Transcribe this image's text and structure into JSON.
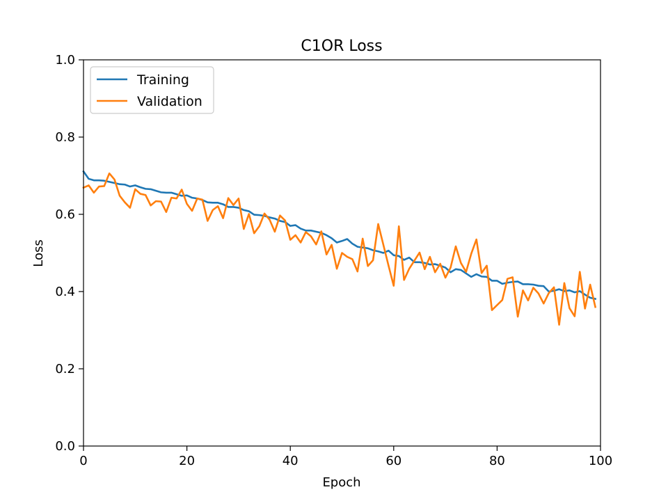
{
  "chart_data": {
    "type": "line",
    "title": "C1OR Loss",
    "xlabel": "Epoch",
    "ylabel": "Loss",
    "xlim": [
      0,
      100
    ],
    "ylim": [
      0.0,
      1.0
    ],
    "xticks": [
      0,
      20,
      40,
      60,
      80,
      100
    ],
    "yticks": [
      0.0,
      0.2,
      0.4,
      0.6,
      0.8,
      1.0
    ],
    "xtick_labels": [
      "0",
      "20",
      "40",
      "60",
      "80",
      "100"
    ],
    "ytick_labels": [
      "0.0",
      "0.2",
      "0.4",
      "0.6",
      "0.8",
      "1.0"
    ],
    "grid": false,
    "legend": "upper-left",
    "x": [
      0,
      1,
      2,
      3,
      4,
      5,
      6,
      7,
      8,
      9,
      10,
      11,
      12,
      13,
      14,
      15,
      16,
      17,
      18,
      19,
      20,
      21,
      22,
      23,
      24,
      25,
      26,
      27,
      28,
      29,
      30,
      31,
      32,
      33,
      34,
      35,
      36,
      37,
      38,
      39,
      40,
      41,
      42,
      43,
      44,
      45,
      46,
      47,
      48,
      49,
      50,
      51,
      52,
      53,
      54,
      55,
      56,
      57,
      58,
      59,
      60,
      61,
      62,
      63,
      64,
      65,
      66,
      67,
      68,
      69,
      70,
      71,
      72,
      73,
      74,
      75,
      76,
      77,
      78,
      79,
      80,
      81,
      82,
      83,
      84,
      85,
      86,
      87,
      88,
      89,
      90,
      91,
      92,
      93,
      94,
      95,
      96,
      97,
      98,
      99
    ],
    "series": [
      {
        "name": "Training",
        "color": "#1f77b4",
        "values": [
          0.711,
          0.692,
          0.688,
          0.688,
          0.687,
          0.684,
          0.681,
          0.678,
          0.677,
          0.672,
          0.675,
          0.67,
          0.666,
          0.665,
          0.661,
          0.657,
          0.656,
          0.656,
          0.652,
          0.648,
          0.649,
          0.643,
          0.641,
          0.637,
          0.631,
          0.63,
          0.63,
          0.626,
          0.619,
          0.619,
          0.617,
          0.611,
          0.608,
          0.599,
          0.598,
          0.596,
          0.592,
          0.589,
          0.583,
          0.58,
          0.57,
          0.572,
          0.563,
          0.558,
          0.558,
          0.555,
          0.552,
          0.546,
          0.538,
          0.527,
          0.531,
          0.536,
          0.524,
          0.516,
          0.514,
          0.512,
          0.507,
          0.504,
          0.5,
          0.506,
          0.494,
          0.492,
          0.482,
          0.488,
          0.476,
          0.476,
          0.474,
          0.47,
          0.471,
          0.467,
          0.462,
          0.45,
          0.458,
          0.456,
          0.447,
          0.438,
          0.445,
          0.439,
          0.438,
          0.428,
          0.428,
          0.42,
          0.423,
          0.425,
          0.426,
          0.419,
          0.419,
          0.418,
          0.415,
          0.414,
          0.4,
          0.402,
          0.406,
          0.401,
          0.403,
          0.398,
          0.401,
          0.392,
          0.384,
          0.381
        ]
      },
      {
        "name": "Validation",
        "color": "#ff7f0e",
        "values": [
          0.669,
          0.675,
          0.656,
          0.672,
          0.673,
          0.706,
          0.69,
          0.648,
          0.631,
          0.617,
          0.665,
          0.653,
          0.65,
          0.623,
          0.634,
          0.633,
          0.606,
          0.643,
          0.641,
          0.664,
          0.627,
          0.609,
          0.641,
          0.638,
          0.583,
          0.611,
          0.621,
          0.59,
          0.642,
          0.624,
          0.641,
          0.562,
          0.601,
          0.551,
          0.569,
          0.602,
          0.586,
          0.555,
          0.597,
          0.584,
          0.534,
          0.546,
          0.527,
          0.554,
          0.543,
          0.522,
          0.556,
          0.496,
          0.521,
          0.459,
          0.5,
          0.49,
          0.484,
          0.452,
          0.537,
          0.466,
          0.481,
          0.575,
          0.521,
          0.467,
          0.415,
          0.569,
          0.43,
          0.459,
          0.48,
          0.501,
          0.458,
          0.49,
          0.45,
          0.472,
          0.436,
          0.462,
          0.517,
          0.474,
          0.451,
          0.498,
          0.535,
          0.448,
          0.467,
          0.352,
          0.365,
          0.378,
          0.433,
          0.437,
          0.335,
          0.403,
          0.377,
          0.41,
          0.395,
          0.369,
          0.396,
          0.411,
          0.314,
          0.422,
          0.357,
          0.336,
          0.451,
          0.356,
          0.418,
          0.36
        ]
      }
    ]
  }
}
